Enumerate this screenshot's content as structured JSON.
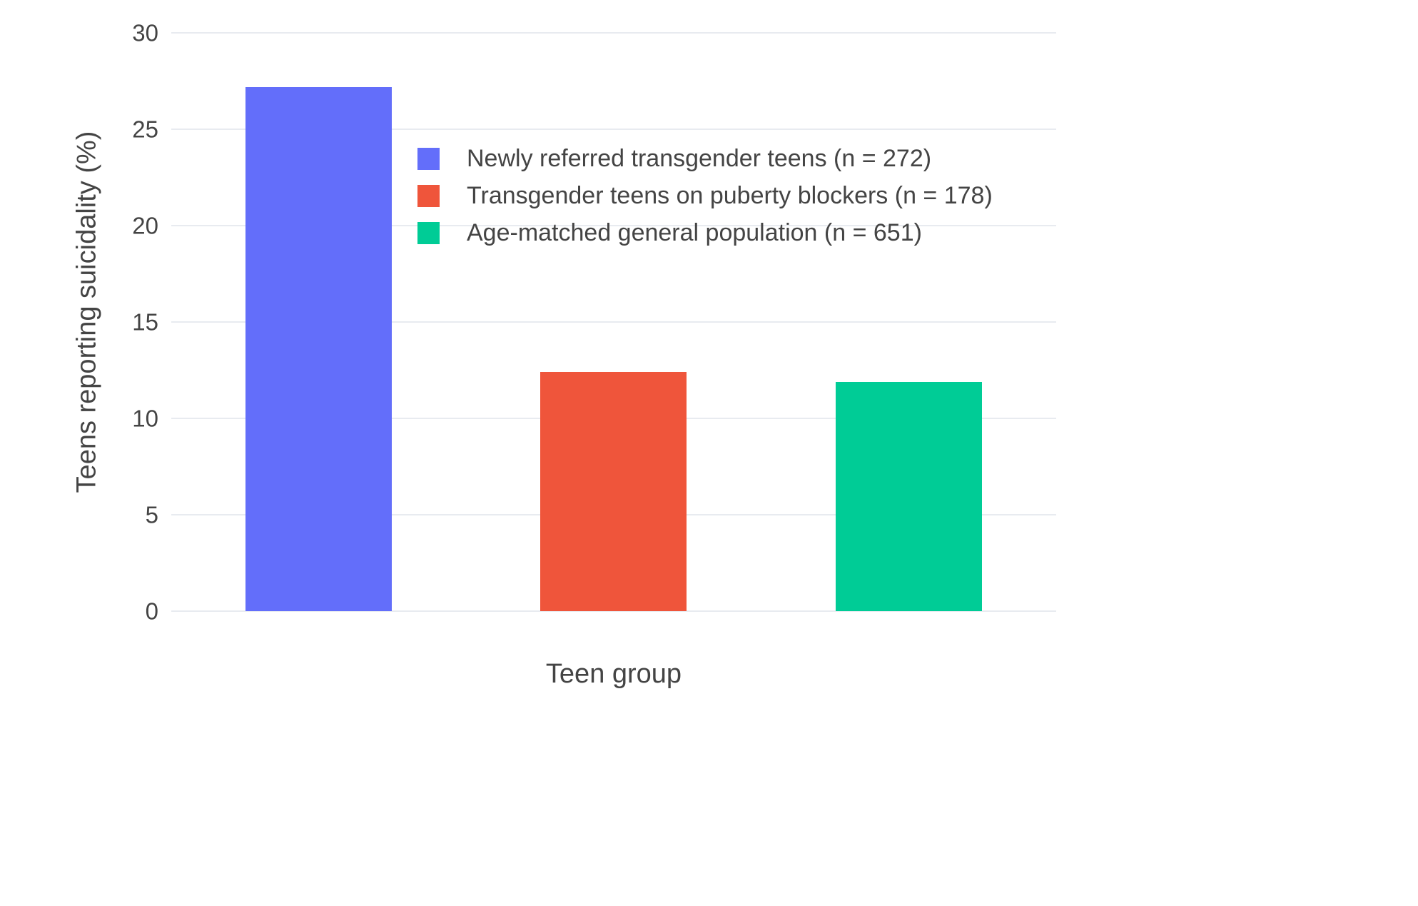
{
  "chart_data": {
    "type": "bar",
    "title": "",
    "xlabel": "Teen group",
    "ylabel": "Teens reporting suicidality (%)",
    "categories": [
      "Newly referred transgender teens (n = 272)",
      "Transgender teens on puberty blockers (n = 178)",
      "Age-matched general population (n = 651)"
    ],
    "values": [
      27.2,
      12.4,
      11.9
    ],
    "bar_colors": [
      "#636efa",
      "#ef553b",
      "#00cc96"
    ],
    "ylim": [
      0,
      30
    ],
    "yticks": [
      0,
      5,
      10,
      15,
      20,
      25,
      30
    ],
    "grid": true,
    "background": "#ffffff",
    "grid_color": "#e8ebf0",
    "text_color": "#444444",
    "legend": {
      "position": "inside-top-left",
      "items": [
        {
          "label": "Newly referred transgender teens (n = 272)",
          "color": "#636efa"
        },
        {
          "label": "Transgender teens on puberty blockers (n = 178)",
          "color": "#ef553b"
        },
        {
          "label": "Age-matched general population (n = 651)",
          "color": "#00cc96"
        }
      ]
    }
  }
}
